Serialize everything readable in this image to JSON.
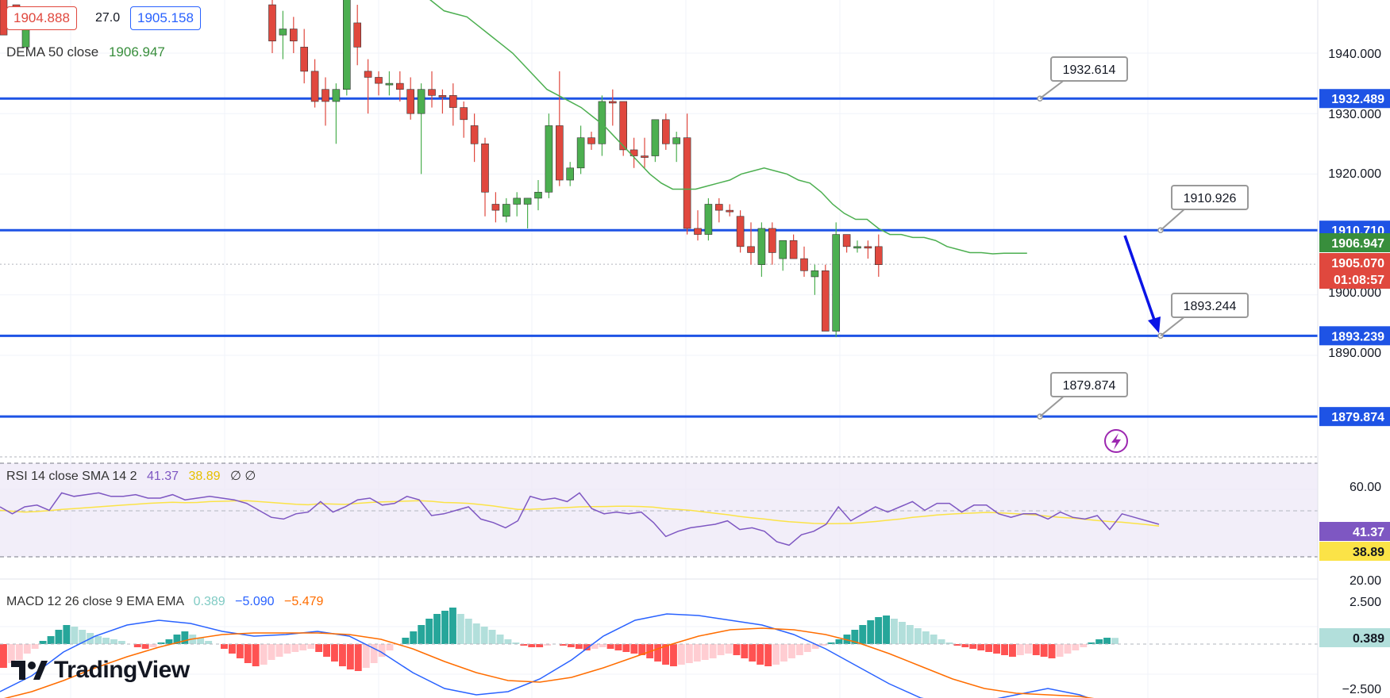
{
  "header": {
    "bid_price": "1904.888",
    "spread": "27.0",
    "ask_price": "1905.158"
  },
  "dema_label": {
    "text": "DEMA 50 close",
    "value": "1906.947"
  },
  "price_axis": {
    "ticks": [
      "1940.000",
      "1930.000",
      "1920.000",
      "1900.000",
      "1890.000"
    ],
    "tags": [
      {
        "text": "1932.489",
        "color": "#1e53e5"
      },
      {
        "text": "1910.710",
        "color": "#1e53e5"
      },
      {
        "text": "1906.947",
        "color": "#388e3c"
      },
      {
        "text": "1905.070",
        "color": "#e0483e"
      },
      {
        "text": "01:08:57",
        "color": "#e0483e"
      },
      {
        "text": "1893.239",
        "color": "#1e53e5"
      },
      {
        "text": "1879.874",
        "color": "#1e53e5"
      }
    ]
  },
  "callouts": [
    "1932.614",
    "1910.926",
    "1893.244",
    "1879.874"
  ],
  "rsi": {
    "label": "RSI 14 close SMA 14 2",
    "rsi_value": "41.37",
    "sma_value": "38.89",
    "extra": "∅ ∅",
    "ticks": [
      "60.00",
      "20.00"
    ],
    "tags": [
      {
        "text": "41.37",
        "color": "#7e57c2"
      },
      {
        "text": "38.89",
        "color": "#fbe347"
      }
    ]
  },
  "macd": {
    "label": "MACD 12 26 close 9 EMA EMA",
    "hist_value": "0.389",
    "macd_value": "−5.090",
    "signal_value": "−5.479",
    "ticks": [
      "2.500",
      "−2.500"
    ],
    "tag": "0.389"
  },
  "logo": {
    "text": "TradingView"
  },
  "colors": {
    "up": "#26a69a",
    "down": "#ef5350",
    "candle_up": "#4caf50",
    "candle_down": "#e0483e",
    "levels": "#1e53e5",
    "dema": "#4caf50",
    "rsi": "#7e57c2",
    "rsi_sma": "#fbe347",
    "macd": "#2962ff",
    "signal": "#ff6d00",
    "arrow": "#0a14e6"
  },
  "chart_data": {
    "type": "candlestick",
    "price_range": [
      1873,
      1945
    ],
    "levels": [
      1932.489,
      1910.71,
      1893.239,
      1879.874
    ],
    "candles": [
      {
        "o": 1948,
        "h": 1952,
        "l": 1940,
        "c": 1942,
        "d": "down"
      },
      {
        "o": 1943,
        "h": 1947,
        "l": 1939,
        "c": 1944,
        "d": "up"
      },
      {
        "o": 1944,
        "h": 1946,
        "l": 1940,
        "c": 1942,
        "d": "down"
      },
      {
        "o": 1941,
        "h": 1944,
        "l": 1935,
        "c": 1937,
        "d": "down"
      },
      {
        "o": 1937,
        "h": 1939,
        "l": 1931,
        "c": 1932,
        "d": "down"
      },
      {
        "o": 1934,
        "h": 1936,
        "l": 1928,
        "c": 1932,
        "d": "down"
      },
      {
        "o": 1932,
        "h": 1935,
        "l": 1925,
        "c": 1934,
        "d": "up"
      },
      {
        "o": 1934,
        "h": 1961,
        "l": 1933,
        "c": 1955,
        "d": "up"
      },
      {
        "o": 1945,
        "h": 1948,
        "l": 1938,
        "c": 1941,
        "d": "down"
      },
      {
        "o": 1937,
        "h": 1939,
        "l": 1930,
        "c": 1936,
        "d": "down"
      },
      {
        "o": 1936,
        "h": 1937,
        "l": 1933,
        "c": 1935,
        "d": "down"
      },
      {
        "o": 1935,
        "h": 1937,
        "l": 1933,
        "c": 1935,
        "d": "up"
      },
      {
        "o": 1935,
        "h": 1937,
        "l": 1932,
        "c": 1934,
        "d": "down"
      },
      {
        "o": 1934,
        "h": 1936,
        "l": 1929,
        "c": 1930,
        "d": "down"
      },
      {
        "o": 1930,
        "h": 1935,
        "l": 1920,
        "c": 1934,
        "d": "up"
      },
      {
        "o": 1934,
        "h": 1937,
        "l": 1931,
        "c": 1933,
        "d": "down"
      },
      {
        "o": 1933,
        "h": 1934,
        "l": 1930,
        "c": 1933,
        "d": "down"
      },
      {
        "o": 1933,
        "h": 1935,
        "l": 1928,
        "c": 1931,
        "d": "down"
      },
      {
        "o": 1931,
        "h": 1932,
        "l": 1926,
        "c": 1929,
        "d": "down"
      },
      {
        "o": 1928,
        "h": 1930,
        "l": 1922,
        "c": 1925,
        "d": "down"
      },
      {
        "o": 1925,
        "h": 1926,
        "l": 1913,
        "c": 1917,
        "d": "down"
      },
      {
        "o": 1914,
        "h": 1917,
        "l": 1912,
        "c": 1915,
        "d": "down"
      },
      {
        "o": 1913,
        "h": 1916,
        "l": 1912,
        "c": 1915,
        "d": "up"
      },
      {
        "o": 1915,
        "h": 1917,
        "l": 1913,
        "c": 1916,
        "d": "up"
      },
      {
        "o": 1915,
        "h": 1916,
        "l": 1911,
        "c": 1916,
        "d": "up"
      },
      {
        "o": 1916,
        "h": 1919,
        "l": 1914,
        "c": 1917,
        "d": "up"
      },
      {
        "o": 1917,
        "h": 1930,
        "l": 1916,
        "c": 1928,
        "d": "up"
      },
      {
        "o": 1928,
        "h": 1937,
        "l": 1918,
        "c": 1919,
        "d": "down"
      },
      {
        "o": 1919,
        "h": 1922,
        "l": 1918,
        "c": 1921,
        "d": "up"
      },
      {
        "o": 1921,
        "h": 1928,
        "l": 1920,
        "c": 1926,
        "d": "up"
      },
      {
        "o": 1926,
        "h": 1927,
        "l": 1924,
        "c": 1925,
        "d": "down"
      },
      {
        "o": 1925,
        "h": 1933,
        "l": 1923,
        "c": 1932,
        "d": "up"
      },
      {
        "o": 1932,
        "h": 1934,
        "l": 1928,
        "c": 1932,
        "d": "down"
      },
      {
        "o": 1932,
        "h": 1932,
        "l": 1923,
        "c": 1924,
        "d": "down"
      },
      {
        "o": 1924,
        "h": 1926,
        "l": 1921,
        "c": 1923,
        "d": "down"
      },
      {
        "o": 1923,
        "h": 1926,
        "l": 1921,
        "c": 1923,
        "d": "down"
      },
      {
        "o": 1923,
        "h": 1929,
        "l": 1922,
        "c": 1929,
        "d": "up"
      },
      {
        "o": 1929,
        "h": 1930,
        "l": 1924,
        "c": 1925,
        "d": "down"
      },
      {
        "o": 1926,
        "h": 1927,
        "l": 1922,
        "c": 1925,
        "d": "up"
      },
      {
        "o": 1926,
        "h": 1930,
        "l": 1910,
        "c": 1911,
        "d": "down"
      },
      {
        "o": 1911,
        "h": 1914,
        "l": 1909,
        "c": 1910,
        "d": "down"
      },
      {
        "o": 1910,
        "h": 1916,
        "l": 1909,
        "c": 1915,
        "d": "up"
      },
      {
        "o": 1915,
        "h": 1916,
        "l": 1912,
        "c": 1914,
        "d": "down"
      },
      {
        "o": 1914,
        "h": 1915,
        "l": 1913,
        "c": 1914,
        "d": "down"
      },
      {
        "o": 1913,
        "h": 1914,
        "l": 1907,
        "c": 1908,
        "d": "down"
      },
      {
        "o": 1908,
        "h": 1912,
        "l": 1905,
        "c": 1907,
        "d": "down"
      },
      {
        "o": 1905,
        "h": 1912,
        "l": 1903,
        "c": 1911,
        "d": "up"
      },
      {
        "o": 1911,
        "h": 1912,
        "l": 1905,
        "c": 1907,
        "d": "down"
      },
      {
        "o": 1906,
        "h": 1909,
        "l": 1904,
        "c": 1909,
        "d": "up"
      },
      {
        "o": 1909,
        "h": 1910,
        "l": 1906,
        "c": 1906,
        "d": "down"
      },
      {
        "o": 1906,
        "h": 1908,
        "l": 1903,
        "c": 1904,
        "d": "down"
      },
      {
        "o": 1903,
        "h": 1905,
        "l": 1900,
        "c": 1904,
        "d": "up"
      },
      {
        "o": 1904,
        "h": 1905,
        "l": 1894,
        "c": 1894,
        "d": "down"
      },
      {
        "o": 1894,
        "h": 1912,
        "l": 1893,
        "c": 1910,
        "d": "up"
      },
      {
        "o": 1910,
        "h": 1910,
        "l": 1907,
        "c": 1908,
        "d": "down"
      },
      {
        "o": 1908,
        "h": 1909,
        "l": 1907,
        "c": 1908,
        "d": "up"
      },
      {
        "o": 1908,
        "h": 1909,
        "l": 1906,
        "c": 1908,
        "d": "down"
      },
      {
        "o": 1908,
        "h": 1910,
        "l": 1903,
        "c": 1905,
        "d": "down"
      }
    ],
    "dema": [
      1956,
      1954.5,
      1953,
      1951.5,
      1950,
      1948.5,
      1947,
      1946.5,
      1946,
      1944.5,
      1943,
      1941.5,
      1940,
      1938,
      1936,
      1934,
      1933,
      1932,
      1931,
      1929.5,
      1928,
      1926,
      1924,
      1922,
      1920,
      1918.5,
      1917.5,
      1917.5,
      1917.5,
      1918,
      1918.5,
      1919,
      1920,
      1920.5,
      1921,
      1920.5,
      1920,
      1919,
      1918.5,
      1917,
      1915,
      1913.5,
      1912.5,
      1912.5,
      1911,
      1910,
      1910,
      1909.5,
      1909.5,
      1909,
      1908,
      1907.5,
      1907,
      1907,
      1906.8,
      1906.9,
      1906.9,
      1906.9
    ],
    "rsi": [
      50,
      46,
      50,
      51,
      48,
      58,
      56,
      57,
      58,
      56,
      56,
      57,
      55,
      55,
      57,
      54,
      55,
      56,
      55,
      54,
      52,
      48,
      44,
      43,
      46,
      47,
      53,
      47,
      50,
      54,
      55,
      51,
      52,
      56,
      54,
      45,
      46,
      48,
      50,
      43,
      41,
      38,
      42,
      56,
      54,
      55,
      53,
      58,
      49,
      46,
      47,
      46,
      47,
      41,
      33,
      36,
      38,
      39,
      40,
      42,
      37,
      38,
      36,
      30,
      28,
      34,
      36,
      40,
      50,
      42,
      46,
      50,
      47,
      50,
      53,
      48,
      52,
      52,
      47,
      51,
      51,
      46,
      44,
      46,
      46,
      43,
      47,
      44,
      43,
      45,
      37,
      46,
      44,
      42,
      40
    ],
    "rsi_sma": [
      48,
      47.5,
      47,
      47.3,
      47.8,
      48.5,
      49,
      49.5,
      50,
      50.5,
      51,
      51.5,
      52,
      52.3,
      52.6,
      52.4,
      52.5,
      53,
      53.2,
      53.4,
      53.5,
      53,
      52.5,
      52,
      51.5,
      51.2,
      51.8,
      51.6,
      51.4,
      52,
      52.5,
      52.8,
      53,
      53.3,
      53.5,
      53.2,
      52.5,
      52.3,
      52,
      51.3,
      50.5,
      49.5,
      48.5,
      48.6,
      48.9,
      49.3,
      49.6,
      50,
      50.1,
      50.2,
      50.3,
      50.3,
      50.2,
      49.8,
      49,
      48.5,
      48,
      47.2,
      46.3,
      45.5,
      44.5,
      43.7,
      43,
      42.2,
      41.5,
      41,
      40.5,
      40.3,
      40.4,
      40.5,
      41,
      41.6,
      42.3,
      43,
      44,
      44.6,
      45.3,
      45.8,
      46.2,
      46.5,
      46.8,
      46.6,
      46.2,
      45.8,
      45.3,
      44.6,
      44,
      43.5,
      42.8,
      42.2,
      41.6,
      41.2,
      40.5,
      39.8,
      39
    ]
  }
}
